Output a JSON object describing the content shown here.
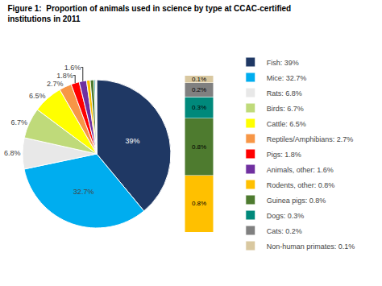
{
  "chart_data": [
    {
      "type": "pie",
      "title": "Figure 1:  Proportion of animals used in science by type at CCAC-certified institutions in 2011",
      "categories": [
        "Fish: 39%",
        "Mice: 32.7%",
        "Rats: 6.8%",
        "Birds: 6.7%",
        "Cattle: 6.5%",
        "Reptiles/Amphibians: 2.7%",
        "Pigs: 1.8%",
        "Animals, other: 1.6%",
        "Rodents, other: 0.8%",
        "Guinea pigs: 0.8%",
        "Dogs: 0.3%",
        "Cats: 0.2%",
        "Non-human primates: 0.1%"
      ],
      "values": [
        39.0,
        32.7,
        6.8,
        6.7,
        6.5,
        2.7,
        1.8,
        1.6,
        0.8,
        0.8,
        0.3,
        0.2,
        0.1
      ],
      "value_labels": [
        "39%",
        "32.7%",
        "6.8%",
        "6.7%",
        "6.5%",
        "2.7%",
        "1.8%",
        "1.6%",
        null,
        null,
        null,
        null,
        null
      ],
      "colors": [
        "#1F3864",
        "#00ADEF",
        "#E8E8E8",
        "#BFDA7A",
        "#FFFF00",
        "#F79646",
        "#FF0000",
        "#7030A0",
        "#FFC000",
        "#4E7B2F",
        "#00897B",
        "#808080",
        "#D9C8A0"
      ],
      "data_labels": true,
      "legend": "right"
    },
    {
      "type": "bar",
      "stacked": true,
      "data_labels": true,
      "tick_labels": false,
      "ylim": [
        0,
        2.2
      ],
      "series": [
        {
          "color": "#FFC000",
          "values": [
            0.8
          ],
          "value_labels": [
            "0.8%"
          ]
        },
        {
          "color": "#4E7B2F",
          "values": [
            0.8
          ],
          "value_labels": [
            "0.8%"
          ]
        },
        {
          "color": "#00897B",
          "values": [
            0.3
          ],
          "value_labels": [
            "0.3%"
          ]
        },
        {
          "color": "#808080",
          "values": [
            0.2
          ],
          "value_labels": [
            "0.2%"
          ]
        },
        {
          "color": "#D9C8A0",
          "values": [
            0.1
          ],
          "value_labels": [
            "0.1%"
          ]
        }
      ]
    }
  ]
}
